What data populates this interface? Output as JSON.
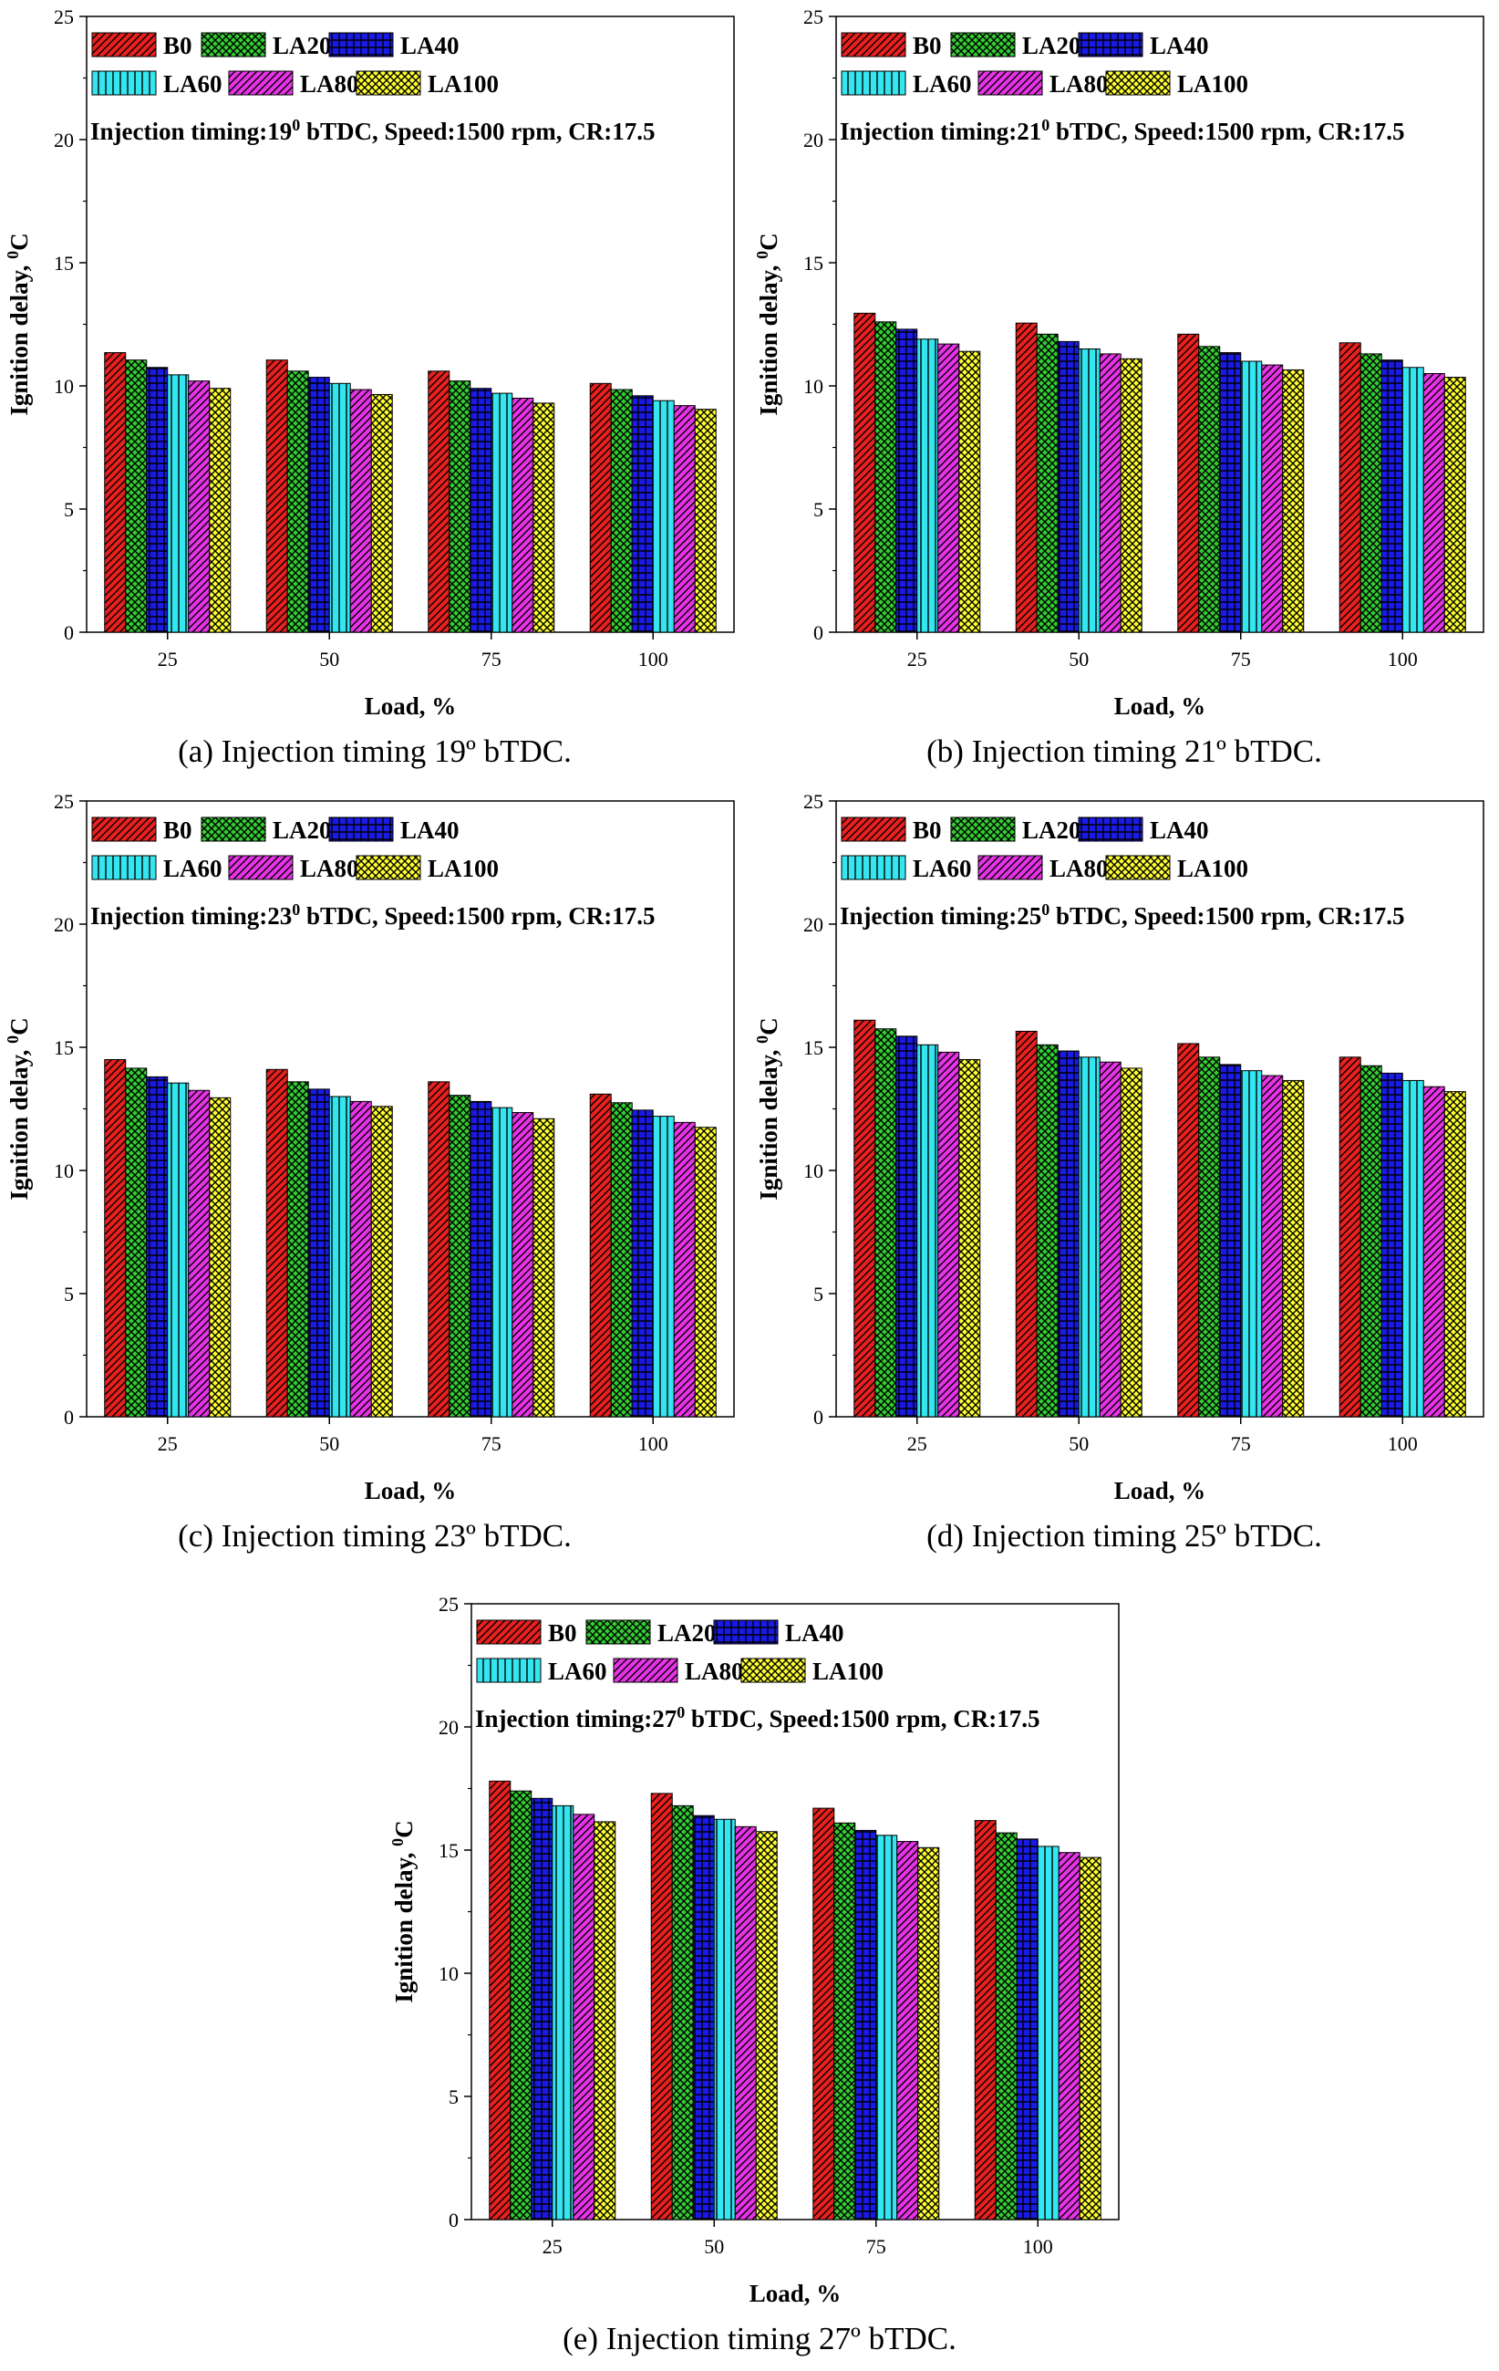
{
  "figure": {
    "legend_labels": [
      "B0",
      "LA20",
      "LA40",
      "LA60",
      "LA80",
      "LA100"
    ],
    "series_colors": [
      "#e8201e",
      "#33cc33",
      "#1a1ae6",
      "#33e6f0",
      "#e633e6",
      "#ffff33"
    ],
    "series_patterns": [
      "diagonal-hatch",
      "crosshatch",
      "grid",
      "vertical-lines",
      "diagonal-hatch",
      "crosshatch"
    ]
  },
  "chart_data": [
    {
      "type": "bar",
      "title": "Injection timing:19 0 bTDC, Speed:1500 rpm, CR:17.5",
      "annotation": {
        "prefix": "Injection timing:19",
        "superscript": "0",
        "suffix": " bTDC, Speed:1500 rpm, CR:17.5"
      },
      "caption": "(a) Injection timing 19º bTDC.",
      "xlabel": "Load, %",
      "ylabel": {
        "text": "Ignition delay, ",
        "superscript": "0",
        "unit": "C"
      },
      "categories": [
        "25",
        "50",
        "75",
        "100"
      ],
      "yticks": [
        "0",
        "5",
        "10",
        "15",
        "20",
        "25"
      ],
      "ylim": [
        0,
        25
      ],
      "series": [
        {
          "name": "B0",
          "values": [
            11.35,
            11.05,
            10.6,
            10.1
          ]
        },
        {
          "name": "LA20",
          "values": [
            11.05,
            10.6,
            10.2,
            9.85
          ]
        },
        {
          "name": "LA40",
          "values": [
            10.75,
            10.35,
            9.9,
            9.6
          ]
        },
        {
          "name": "LA60",
          "values": [
            10.45,
            10.1,
            9.7,
            9.4
          ]
        },
        {
          "name": "LA80",
          "values": [
            10.2,
            9.85,
            9.5,
            9.2
          ]
        },
        {
          "name": "LA100",
          "values": [
            9.9,
            9.65,
            9.3,
            9.05
          ]
        }
      ]
    },
    {
      "type": "bar",
      "title": "Injection timing:21 0 bTDC, Speed:1500 rpm, CR:17.5",
      "annotation": {
        "prefix": "Injection timing:21",
        "superscript": "0",
        "suffix": " bTDC, Speed:1500 rpm, CR:17.5"
      },
      "caption": "(b) Injection timing 21º bTDC.",
      "xlabel": "Load, %",
      "ylabel": {
        "text": "Ignition delay, ",
        "superscript": "0",
        "unit": "C"
      },
      "categories": [
        "25",
        "50",
        "75",
        "100"
      ],
      "yticks": [
        "0",
        "5",
        "10",
        "15",
        "20",
        "25"
      ],
      "ylim": [
        0,
        25
      ],
      "series": [
        {
          "name": "B0",
          "values": [
            12.95,
            12.55,
            12.1,
            11.75
          ]
        },
        {
          "name": "LA20",
          "values": [
            12.6,
            12.1,
            11.6,
            11.3
          ]
        },
        {
          "name": "LA40",
          "values": [
            12.3,
            11.8,
            11.35,
            11.05
          ]
        },
        {
          "name": "LA60",
          "values": [
            11.9,
            11.5,
            11.0,
            10.75
          ]
        },
        {
          "name": "LA80",
          "values": [
            11.7,
            11.3,
            10.85,
            10.5
          ]
        },
        {
          "name": "LA100",
          "values": [
            11.4,
            11.1,
            10.65,
            10.35
          ]
        }
      ]
    },
    {
      "type": "bar",
      "title": "Injection timing:23 0 bTDC, Speed:1500 rpm, CR:17.5",
      "annotation": {
        "prefix": "Injection timing:23",
        "superscript": "0",
        "suffix": " bTDC, Speed:1500 rpm, CR:17.5"
      },
      "caption": "(c) Injection timing 23º bTDC.",
      "xlabel": "Load, %",
      "ylabel": {
        "text": "Ignition delay, ",
        "superscript": "0",
        "unit": "C"
      },
      "categories": [
        "25",
        "50",
        "75",
        "100"
      ],
      "yticks": [
        "0",
        "5",
        "10",
        "15",
        "20",
        "25"
      ],
      "ylim": [
        0,
        25
      ],
      "series": [
        {
          "name": "B0",
          "values": [
            14.5,
            14.1,
            13.6,
            13.1
          ]
        },
        {
          "name": "LA20",
          "values": [
            14.15,
            13.6,
            13.05,
            12.75
          ]
        },
        {
          "name": "LA40",
          "values": [
            13.8,
            13.3,
            12.8,
            12.45
          ]
        },
        {
          "name": "LA60",
          "values": [
            13.55,
            13.0,
            12.55,
            12.2
          ]
        },
        {
          "name": "LA80",
          "values": [
            13.25,
            12.8,
            12.35,
            11.95
          ]
        },
        {
          "name": "LA100",
          "values": [
            12.95,
            12.6,
            12.1,
            11.75
          ]
        }
      ]
    },
    {
      "type": "bar",
      "title": "Injection timing:25 0 bTDC, Speed:1500 rpm, CR:17.5",
      "annotation": {
        "prefix": "Injection timing:25",
        "superscript": "0",
        "suffix": " bTDC, Speed:1500 rpm, CR:17.5"
      },
      "caption": "(d) Injection timing 25º bTDC.",
      "xlabel": "Load, %",
      "ylabel": {
        "text": "Ignition delay, ",
        "superscript": "0",
        "unit": "C"
      },
      "categories": [
        "25",
        "50",
        "75",
        "100"
      ],
      "yticks": [
        "0",
        "5",
        "10",
        "15",
        "20",
        "25"
      ],
      "ylim": [
        0,
        25
      ],
      "series": [
        {
          "name": "B0",
          "values": [
            16.1,
            15.65,
            15.15,
            14.6
          ]
        },
        {
          "name": "LA20",
          "values": [
            15.75,
            15.1,
            14.6,
            14.25
          ]
        },
        {
          "name": "LA40",
          "values": [
            15.45,
            14.85,
            14.3,
            13.95
          ]
        },
        {
          "name": "LA60",
          "values": [
            15.1,
            14.6,
            14.05,
            13.65
          ]
        },
        {
          "name": "LA80",
          "values": [
            14.8,
            14.4,
            13.85,
            13.4
          ]
        },
        {
          "name": "LA100",
          "values": [
            14.5,
            14.15,
            13.65,
            13.2
          ]
        }
      ]
    },
    {
      "type": "bar",
      "title": "Injection timing:27 0 bTDC, Speed:1500 rpm, CR:17.5",
      "annotation": {
        "prefix": "Injection timing:27",
        "superscript": "0",
        "suffix": " bTDC, Speed:1500 rpm, CR:17.5"
      },
      "caption": "(e) Injection timing 27º bTDC.",
      "xlabel": "Load, %",
      "ylabel": {
        "text": "Ignition delay, ",
        "superscript": "0",
        "unit": "C"
      },
      "categories": [
        "25",
        "50",
        "75",
        "100"
      ],
      "yticks": [
        "0",
        "5",
        "10",
        "15",
        "20",
        "25"
      ],
      "ylim": [
        0,
        25
      ],
      "series": [
        {
          "name": "B0",
          "values": [
            17.8,
            17.3,
            16.7,
            16.2
          ]
        },
        {
          "name": "LA20",
          "values": [
            17.4,
            16.8,
            16.1,
            15.7
          ]
        },
        {
          "name": "LA40",
          "values": [
            17.1,
            16.4,
            15.8,
            15.45
          ]
        },
        {
          "name": "LA60",
          "values": [
            16.8,
            16.25,
            15.6,
            15.15
          ]
        },
        {
          "name": "LA80",
          "values": [
            16.45,
            15.95,
            15.35,
            14.9
          ]
        },
        {
          "name": "LA100",
          "values": [
            16.15,
            15.75,
            15.1,
            14.7
          ]
        }
      ]
    }
  ]
}
